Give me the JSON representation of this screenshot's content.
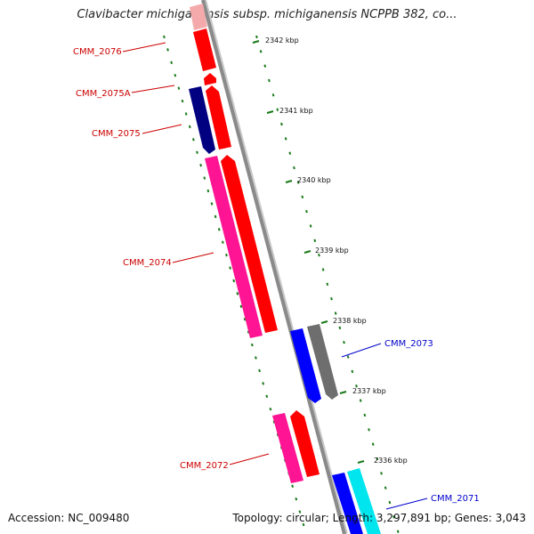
{
  "title": "Clavibacter michiganensis subsp. michiganensis NCPPB 382, co...",
  "footer": {
    "accession": "Accession: NC_009480",
    "summary": "Topology: circular; Length: 3,297,891 bp; Genes: 3,043"
  },
  "colors": {
    "backbone": "#8a8a8a",
    "forward_cds": "#ff0000",
    "forward_other": "#ff1493",
    "reverse_cds": "#0000ff",
    "reverse_other": "#000080",
    "pseudo": "#6e6e6e",
    "cyan_feature": "#00e5ee",
    "tick": "#1a7a1a",
    "label_forward": "#cc0000",
    "label_reverse": "#0000cc"
  },
  "scale_labels": [
    {
      "label": "2342 kbp",
      "kbp": 2342
    },
    {
      "label": "2341 kbp",
      "kbp": 2341
    },
    {
      "label": "2340 kbp",
      "kbp": 2340
    },
    {
      "label": "2339 kbp",
      "kbp": 2339
    },
    {
      "label": "2338 kbp",
      "kbp": 2338
    },
    {
      "label": "2337 kbp",
      "kbp": 2337
    },
    {
      "label": "2336 kbp",
      "kbp": 2336
    }
  ],
  "gene_labels": [
    {
      "label": "CMM_2076",
      "strand": "forward"
    },
    {
      "label": "CMM_2075A",
      "strand": "forward"
    },
    {
      "label": "CMM_2075",
      "strand": "forward"
    },
    {
      "label": "CMM_2074",
      "strand": "forward"
    },
    {
      "label": "CMM_2073",
      "strand": "reverse"
    },
    {
      "label": "CMM_2072",
      "strand": "forward"
    },
    {
      "label": "CMM_2071",
      "strand": "reverse"
    }
  ]
}
